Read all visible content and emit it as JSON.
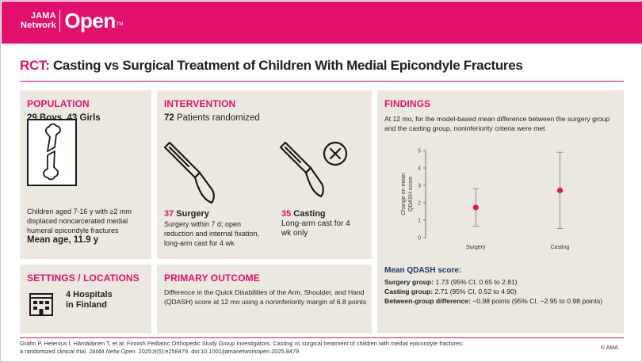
{
  "header": {
    "logo_small_line1": "JAMA",
    "logo_small_line2": "Network",
    "logo_big": "Open",
    "logo_tm": "TM",
    "brand_color": "#e3106d"
  },
  "title": {
    "prefix": "RCT:",
    "text": " Casting  vs Surgical Treatment of Children With Medial Epicondyle Fractures"
  },
  "population": {
    "heading": "POPULATION",
    "count_boys": "29 Boys,",
    "count_girls": " 43 Girls",
    "icon": "broken-bone-icon",
    "description": "Children aged 7-16 y with ≥2 mm displaced noncarcerated medial humeral epicondyle fractures",
    "mean_age": "Mean age, 11.9 y"
  },
  "intervention": {
    "heading": "INTERVENTION",
    "patients_number": "72",
    "patients_text": " Patients randomized",
    "surgery_icon": "scalpel-icon",
    "casting_icon": "no-scalpel-icon",
    "surgery_count": "37",
    "surgery_label": " Surgery",
    "surgery_desc": "Surgery within 7 d; open reduction and internal fixation, long-arm cast for 4 wk",
    "casting_count": "35",
    "casting_label": " Casting",
    "casting_desc": "Long-arm cast for 4 wk only"
  },
  "findings": {
    "heading": "FINDINGS",
    "text": "At 12 mo, for the model-based mean difference between the surgery group and the casting group, noninferiority criteria were met",
    "score_heading": "Mean QDASH score:",
    "surgery_label": "Surgery group:",
    "surgery_value": " 1.73 (95% CI, 0.65 to 2.81)",
    "casting_label": "Casting group:",
    "casting_value": " 2.71 (95% CI, 0.52 to 4.90)",
    "diff_label": "Between-group difference:",
    "diff_value": " −0.98 points (95% CI, −2.95 to 0.98 points)"
  },
  "chart_data": {
    "type": "scatter",
    "categories": [
      "Surgery",
      "Casting"
    ],
    "values": [
      1.73,
      2.71
    ],
    "ci_low": [
      0.65,
      0.52
    ],
    "ci_high": [
      2.81,
      4.9
    ],
    "ylabel": "Change on mean QDASH score",
    "ylim": [
      0,
      5
    ],
    "yticks": [
      "0",
      "1",
      "2",
      "3",
      "4",
      "5"
    ],
    "point_color": "#e3106d"
  },
  "settings": {
    "heading": "SETTINGS / LOCATIONS",
    "icon": "hospital-building-icon",
    "line1": "4 Hospitals",
    "line2": "in Finland"
  },
  "primary_outcome": {
    "heading": "PRIMARY OUTCOME",
    "text": "Difference in the Quick Disabilities of the Arm, Shoulder, and Hand (QDASH) score at 12 mo using a noninferiority margin of 6.8 points"
  },
  "citation": {
    "line1": "Grahn P, Helenius I, Hämäläinen T, et al; Finnish Pediatric Orthopedic Study Group Investigators. Casting vs surgical treatment of children with medial epicondyle fractures:",
    "line2_a": "a randomized clinical trial. ",
    "line2_journal": "JAMA Netw Open",
    "line2_b": ". 2025;8(5):e258479. doi:10.1001/jamanetworkopen.2025.8479",
    "copyright": "© AMA"
  }
}
